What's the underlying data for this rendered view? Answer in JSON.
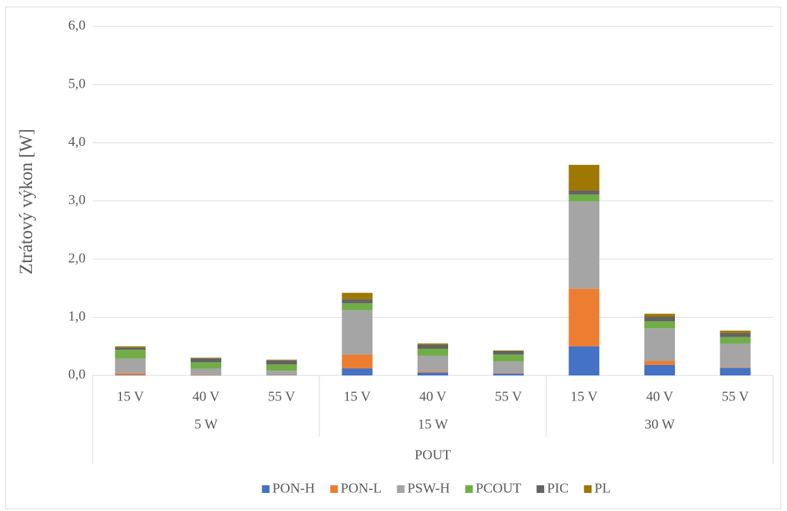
{
  "chart_data": {
    "type": "stacked_bar",
    "ylabel": "Ztrátový výkon [W]",
    "xlabel": "POUT",
    "categories": [
      "15 V",
      "40 V",
      "55 V",
      "15 V",
      "40 V",
      "55 V",
      "15 V",
      "40 V",
      "55 V"
    ],
    "groups": [
      "5 W",
      "15 W",
      "30 W"
    ],
    "series": [
      {
        "name": "PON-H",
        "color": "#4472c4",
        "values": [
          0.01,
          0.005,
          0.005,
          0.12,
          0.05,
          0.03,
          0.5,
          0.18,
          0.13
        ]
      },
      {
        "name": "PON-L",
        "color": "#ed7d31",
        "values": [
          0.03,
          0.01,
          0.005,
          0.24,
          0.02,
          0.01,
          0.99,
          0.07,
          0.01
        ]
      },
      {
        "name": "PSW-H",
        "color": "#a5a5a5",
        "values": [
          0.25,
          0.1,
          0.07,
          0.76,
          0.27,
          0.2,
          1.5,
          0.56,
          0.41
        ]
      },
      {
        "name": "PCOUT",
        "color": "#70ad47",
        "values": [
          0.15,
          0.11,
          0.11,
          0.12,
          0.12,
          0.12,
          0.12,
          0.12,
          0.11
        ]
      },
      {
        "name": "PIC",
        "color": "#636363",
        "values": [
          0.04,
          0.07,
          0.07,
          0.07,
          0.07,
          0.06,
          0.07,
          0.08,
          0.07
        ]
      },
      {
        "name": "PL",
        "color": "#9e7800",
        "values": [
          0.02,
          0.01,
          0.01,
          0.11,
          0.02,
          0.01,
          0.44,
          0.05,
          0.04
        ]
      }
    ],
    "ylim": [
      0,
      6
    ],
    "yticks": [
      {
        "value": 0,
        "label": "0,0"
      },
      {
        "value": 1,
        "label": "1,0"
      },
      {
        "value": 2,
        "label": "2,0"
      },
      {
        "value": 3,
        "label": "3,0"
      },
      {
        "value": 4,
        "label": "4,0"
      },
      {
        "value": 5,
        "label": "5,0"
      },
      {
        "value": 6,
        "label": "6,0"
      }
    ],
    "grid": true,
    "legend": "bottom"
  }
}
